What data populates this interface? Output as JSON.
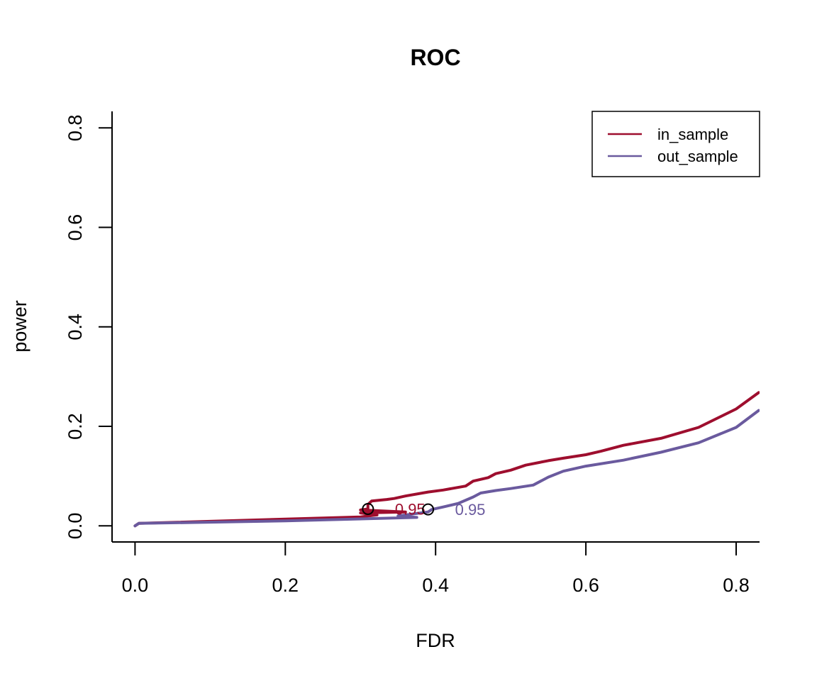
{
  "chart_data": {
    "type": "line",
    "title": "ROC",
    "xlabel": "FDR",
    "ylabel": "power",
    "xlim": [
      0,
      0.83
    ],
    "ylim": [
      0,
      0.82
    ],
    "xticks": [
      0.0,
      0.2,
      0.4,
      0.6,
      0.8
    ],
    "yticks": [
      0.0,
      0.2,
      0.4,
      0.6,
      0.8
    ],
    "xtick_labels": [
      "0.0",
      "0.2",
      "0.4",
      "0.6",
      "0.8"
    ],
    "ytick_labels": [
      "0.0",
      "0.2",
      "0.4",
      "0.6",
      "0.8"
    ],
    "legend": {
      "position": "top-right",
      "entries": [
        "in_sample",
        "out_sample"
      ]
    },
    "series": [
      {
        "name": "in_sample",
        "color": "#9e0e2e",
        "x": [
          0.0,
          0.005,
          0.3,
          0.322,
          0.3,
          0.36,
          0.3,
          0.31,
          0.31,
          0.315,
          0.335,
          0.345,
          0.36,
          0.39,
          0.41,
          0.44,
          0.45,
          0.47,
          0.48,
          0.5,
          0.52,
          0.55,
          0.57,
          0.6,
          0.62,
          0.65,
          0.7,
          0.75,
          0.8,
          0.83
        ],
        "y": [
          0.0,
          0.005,
          0.018,
          0.022,
          0.026,
          0.028,
          0.032,
          0.034,
          0.043,
          0.05,
          0.053,
          0.055,
          0.06,
          0.068,
          0.072,
          0.08,
          0.09,
          0.097,
          0.105,
          0.112,
          0.122,
          0.131,
          0.136,
          0.143,
          0.15,
          0.162,
          0.176,
          0.198,
          0.235,
          0.268
        ],
        "threshold": {
          "x": 0.31,
          "y": 0.034,
          "label": "0.95"
        }
      },
      {
        "name": "out_sample",
        "color": "#6a5a9e",
        "x": [
          0.0,
          0.005,
          0.2,
          0.375,
          0.35,
          0.39,
          0.395,
          0.41,
          0.43,
          0.45,
          0.46,
          0.48,
          0.5,
          0.53,
          0.55,
          0.57,
          0.6,
          0.65,
          0.7,
          0.75,
          0.8,
          0.83
        ],
        "y": [
          0.0,
          0.005,
          0.01,
          0.017,
          0.02,
          0.028,
          0.033,
          0.038,
          0.045,
          0.058,
          0.066,
          0.071,
          0.075,
          0.082,
          0.098,
          0.11,
          0.12,
          0.132,
          0.148,
          0.167,
          0.198,
          0.232
        ],
        "threshold": {
          "x": 0.39,
          "y": 0.033,
          "label": "0.95"
        }
      }
    ]
  }
}
